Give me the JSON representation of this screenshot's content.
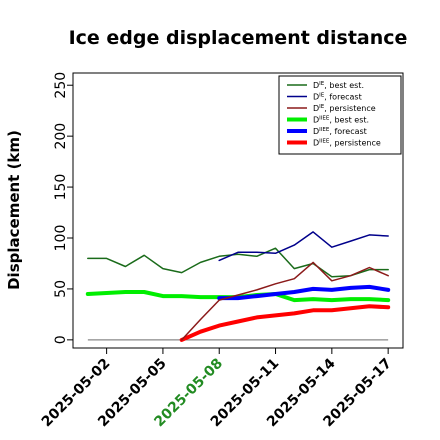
{
  "chart_data": {
    "type": "line",
    "title": "Ice edge displacement distance",
    "xlabel": "",
    "ylabel": "Displacement (km)",
    "ylim": [
      -8,
      262
    ],
    "xlim": [
      "2025-05-01",
      "2025-05-17"
    ],
    "y_ticks": [
      0,
      50,
      100,
      150,
      200,
      250
    ],
    "x_ticks": [
      {
        "date": "2025-05-02",
        "label": "2025-05-02",
        "color": "#000000"
      },
      {
        "date": "2025-05-05",
        "label": "2025-05-05",
        "color": "#000000"
      },
      {
        "date": "2025-05-08",
        "label": "2025-05-08",
        "color": "#228B22"
      },
      {
        "date": "2025-05-11",
        "label": "2025-05-11",
        "color": "#000000"
      },
      {
        "date": "2025-05-14",
        "label": "2025-05-14",
        "color": "#000000"
      },
      {
        "date": "2025-05-17",
        "label": "2025-05-17",
        "color": "#000000"
      }
    ],
    "legend": {
      "placement": "top-right",
      "entries": [
        {
          "label": "D^IE, best est.",
          "base": "D",
          "sup": "IE",
          "suffix": ", best est.",
          "color": "#1a6b1a",
          "width": 1.5
        },
        {
          "label": "D^IE, forecast",
          "base": "D",
          "sup": "IE",
          "suffix": ", forecast",
          "color": "#00008b",
          "width": 1.5
        },
        {
          "label": "D^IE, persistence",
          "base": "D",
          "sup": "IE",
          "suffix": ", persistence",
          "color": "#8b1a1a",
          "width": 1.5
        },
        {
          "label": "D^IIEE, best est.",
          "base": "D",
          "sup": "IIEE",
          "suffix": ", best est.",
          "color": "#00ee00",
          "width": 4
        },
        {
          "label": "D^IIEE, forecast",
          "base": "D",
          "sup": "IIEE",
          "suffix": ", forecast",
          "color": "#0000ff",
          "width": 4
        },
        {
          "label": "D^IIEE, persistence",
          "base": "D",
          "sup": "IIEE",
          "suffix": ", persistence",
          "color": "#ff0000",
          "width": 4
        }
      ]
    },
    "baseline": {
      "y": 0,
      "x_start": "2025-05-01",
      "x_end": "2025-05-17",
      "color": "#888888"
    },
    "series": [
      {
        "name": "D^IE, best est.",
        "color": "#1a6b1a",
        "width": 1.5,
        "x": [
          "2025-05-01",
          "2025-05-02",
          "2025-05-03",
          "2025-05-04",
          "2025-05-05",
          "2025-05-06",
          "2025-05-07",
          "2025-05-08",
          "2025-05-09",
          "2025-05-10",
          "2025-05-11",
          "2025-05-12",
          "2025-05-13",
          "2025-05-14",
          "2025-05-15",
          "2025-05-16",
          "2025-05-17"
        ],
        "y": [
          80,
          80,
          72,
          83,
          70,
          66,
          76,
          82,
          84,
          82,
          90,
          70,
          75,
          62,
          63,
          69,
          69
        ]
      },
      {
        "name": "D^IE, forecast",
        "color": "#00008b",
        "width": 1.5,
        "x": [
          "2025-05-08",
          "2025-05-09",
          "2025-05-10",
          "2025-05-11",
          "2025-05-12",
          "2025-05-13",
          "2025-05-14",
          "2025-05-15",
          "2025-05-16",
          "2025-05-17"
        ],
        "y": [
          78,
          86,
          86,
          85,
          93,
          106,
          91,
          97,
          103,
          102
        ]
      },
      {
        "name": "D^IE, persistence",
        "color": "#8b1a1a",
        "width": 1.5,
        "x": [
          "2025-05-06",
          "2025-05-07",
          "2025-05-08",
          "2025-05-09",
          "2025-05-10",
          "2025-05-11",
          "2025-05-12",
          "2025-05-13",
          "2025-05-14",
          "2025-05-15",
          "2025-05-16",
          "2025-05-17"
        ],
        "y": [
          0,
          20,
          39,
          44,
          49,
          55,
          60,
          76,
          58,
          63,
          71,
          63
        ]
      },
      {
        "name": "D^IIEE, best est.",
        "color": "#00ee00",
        "width": 4,
        "x": [
          "2025-05-01",
          "2025-05-02",
          "2025-05-03",
          "2025-05-04",
          "2025-05-05",
          "2025-05-06",
          "2025-05-07",
          "2025-05-08",
          "2025-05-09",
          "2025-05-10",
          "2025-05-11",
          "2025-05-12",
          "2025-05-13",
          "2025-05-14",
          "2025-05-15",
          "2025-05-16",
          "2025-05-17"
        ],
        "y": [
          45,
          46,
          47,
          47,
          43,
          43,
          42,
          42,
          42,
          44,
          45,
          39,
          40,
          39,
          40,
          40,
          39
        ]
      },
      {
        "name": "D^IIEE, forecast",
        "color": "#0000ff",
        "width": 4,
        "x": [
          "2025-05-08",
          "2025-05-09",
          "2025-05-10",
          "2025-05-11",
          "2025-05-12",
          "2025-05-13",
          "2025-05-14",
          "2025-05-15",
          "2025-05-16",
          "2025-05-17"
        ],
        "y": [
          41,
          41,
          43,
          45,
          47,
          50,
          49,
          51,
          52,
          49
        ]
      },
      {
        "name": "D^IIEE, persistence",
        "color": "#ff0000",
        "width": 4,
        "x": [
          "2025-05-06",
          "2025-05-07",
          "2025-05-08",
          "2025-05-09",
          "2025-05-10",
          "2025-05-11",
          "2025-05-12",
          "2025-05-13",
          "2025-05-14",
          "2025-05-15",
          "2025-05-16",
          "2025-05-17"
        ],
        "y": [
          0,
          8,
          14,
          18,
          22,
          24,
          26,
          29,
          29,
          31,
          33,
          32
        ]
      }
    ],
    "grid": false
  }
}
